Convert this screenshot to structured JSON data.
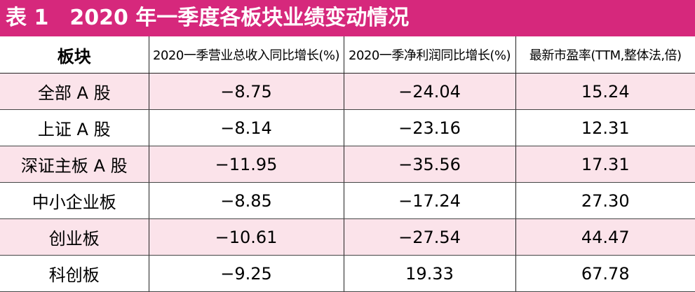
{
  "title": "表 1　2020 年一季度各板块业绩变动情况",
  "table": {
    "header": [
      "板块",
      "2020一季营业总收入同比增长(%)",
      "2020一季净利润同比增长(%)",
      "最新市盈率(TTM,整体法,倍)"
    ],
    "rows": [
      [
        "全部 A 股",
        "−8.75",
        "−24.04",
        "15.24"
      ],
      [
        "上证 A 股",
        "−8.14",
        "−23.16",
        "12.31"
      ],
      [
        "深证主板 A 股",
        "−11.95",
        "−35.56",
        "17.31"
      ],
      [
        "中小企业板",
        "−8.85",
        "−17.24",
        "27.30"
      ],
      [
        "创业板",
        "−10.61",
        "−27.54",
        "44.47"
      ],
      [
        "科创板",
        "−9.25",
        "19.33",
        "67.78"
      ]
    ]
  }
}
